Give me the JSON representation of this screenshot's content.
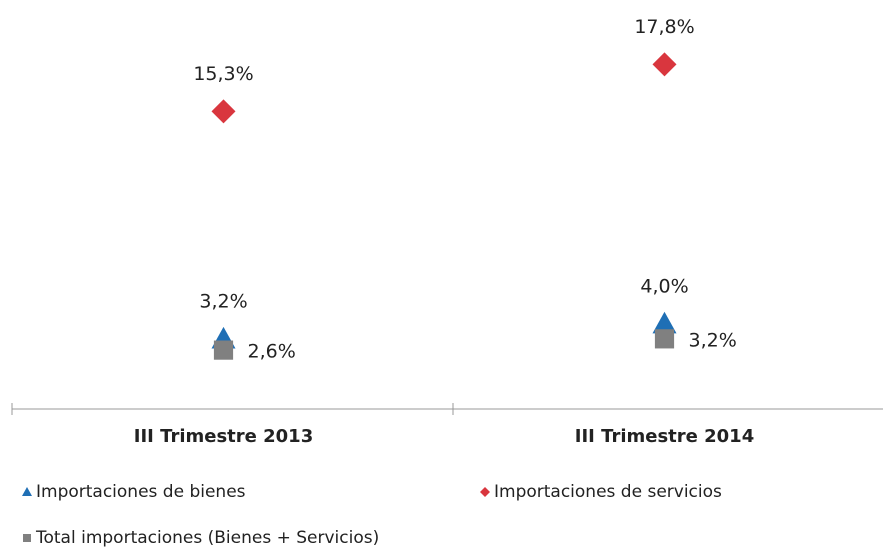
{
  "chart_data": {
    "type": "line",
    "categories": [
      "III Trimestre 2013",
      "III Trimestre 2014"
    ],
    "series": [
      {
        "name": "Importaciones de bienes",
        "color": "#1f6fb5",
        "marker": "triangle",
        "values": [
          3.2,
          4.0
        ],
        "value_labels": [
          "3,2%",
          "4,0%"
        ]
      },
      {
        "name": "Importaciones de servicios",
        "color": "#d9363e",
        "marker": "diamond",
        "values": [
          15.3,
          17.8
        ],
        "value_labels": [
          "15,3%",
          "17,8%"
        ]
      },
      {
        "name": "Total importaciones (Bienes + Servicios)",
        "color": "#808080",
        "marker": "square",
        "values": [
          2.6,
          3.2
        ],
        "value_labels": [
          "2,6%",
          "3,2%"
        ]
      }
    ],
    "ylim": [
      0,
      20
    ],
    "lines": false,
    "legend": "bottom"
  }
}
